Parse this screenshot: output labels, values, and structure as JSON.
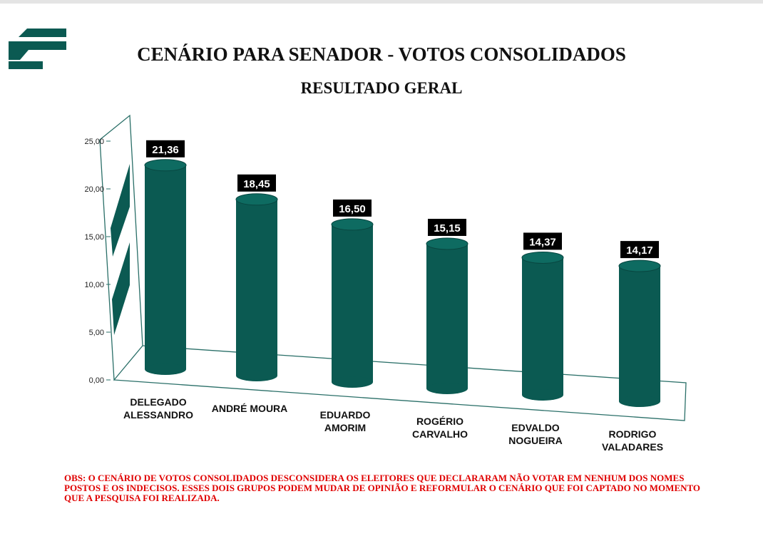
{
  "chart_data": {
    "type": "bar",
    "title": "CENÁRIO PARA SENADOR - VOTOS CONSOLIDADOS",
    "subtitle": "RESULTADO GERAL",
    "categories": [
      "DELEGADO ALESSANDRO",
      "ANDRÉ MOURA",
      "EDUARDO AMORIM",
      "ROGÉRIO CARVALHO",
      "EDVALDO NOGUEIRA",
      "RODRIGO VALADARES"
    ],
    "values": [
      21.36,
      18.45,
      16.5,
      15.15,
      14.37,
      14.17
    ],
    "value_labels": [
      "21,36",
      "18,45",
      "16,50",
      "15,15",
      "14,37",
      "14,17"
    ],
    "color": "#0b5a52",
    "ylim": [
      0,
      25
    ],
    "yticks": [
      {
        "value": 0,
        "label": "0,00"
      },
      {
        "value": 5,
        "label": "5,00"
      },
      {
        "value": 10,
        "label": "10,00"
      },
      {
        "value": 15,
        "label": "15,00"
      },
      {
        "value": 20,
        "label": "20,00"
      },
      {
        "value": 25,
        "label": "25,00"
      }
    ],
    "note": "OBS: O CENÁRIO DE VOTOS CONSOLIDADOS DESCONSIDERA OS ELEITORES QUE DECLARARAM NÃO VOTAR EM NENHUM DOS NOMES POSTOS E OS INDECISOS. ESSES DOIS GRUPOS PODEM MUDAR DE OPINIÃO E REFORMULAR O CENÁRIO QUE FOI CAPTADO NO MOMENTO QUE A PESQUISA FOI REALIZADA."
  }
}
